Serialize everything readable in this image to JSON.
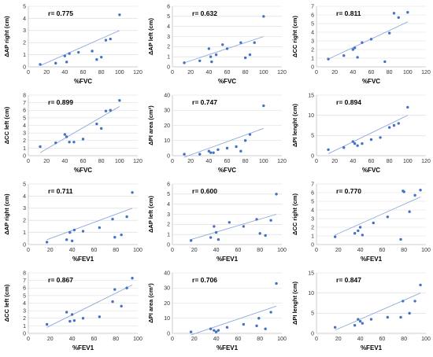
{
  "chart_data": [
    {
      "type": "scatter",
      "ylabel": "ΔAP right (cm)",
      "xlabel": "%FVC",
      "r_label": "r= 0.775",
      "xlim": [
        0,
        120
      ],
      "ylim": [
        0,
        5
      ],
      "xticks": [
        0,
        20,
        40,
        60,
        80,
        100,
        120
      ],
      "yticks": [
        0,
        1,
        2,
        3,
        4,
        5
      ],
      "x": [
        13,
        30,
        40,
        42,
        45,
        55,
        70,
        75,
        80,
        85,
        90,
        100
      ],
      "y": [
        0.2,
        0.3,
        0.9,
        0.4,
        1.1,
        1.2,
        1.3,
        0.6,
        0.8,
        2.2,
        2.3,
        4.3
      ],
      "trend": [
        [
          13,
          0.1
        ],
        [
          100,
          3.0
        ]
      ]
    },
    {
      "type": "scatter",
      "ylabel": "ΔAP left (cm)",
      "xlabel": "%FVC",
      "r_label": "r= 0.632",
      "xlim": [
        0,
        120
      ],
      "ylim": [
        0,
        6
      ],
      "xticks": [
        0,
        20,
        40,
        60,
        80,
        100,
        120
      ],
      "yticks": [
        0,
        1,
        2,
        3,
        4,
        5,
        6
      ],
      "x": [
        13,
        30,
        40,
        42,
        43,
        48,
        55,
        60,
        75,
        80,
        85,
        90,
        100
      ],
      "y": [
        0.4,
        0.6,
        1.8,
        1.0,
        0.5,
        1.2,
        2.2,
        1.8,
        2.4,
        0.9,
        1.2,
        2.4,
        5.0
      ],
      "trend": [
        [
          13,
          0.4
        ],
        [
          100,
          3.0
        ]
      ]
    },
    {
      "type": "scatter",
      "ylabel": "ΔCC right (cm)",
      "xlabel": "%FVC",
      "r_label": "r= 0.811",
      "xlim": [
        0,
        120
      ],
      "ylim": [
        0,
        7
      ],
      "xticks": [
        0,
        20,
        40,
        60,
        80,
        100,
        120
      ],
      "yticks": [
        0,
        1,
        2,
        3,
        4,
        5,
        6,
        7
      ],
      "x": [
        13,
        30,
        40,
        42,
        45,
        50,
        60,
        75,
        80,
        85,
        90,
        100
      ],
      "y": [
        0.9,
        1.3,
        2.0,
        2.2,
        1.1,
        2.8,
        3.2,
        0.6,
        3.9,
        6.2,
        5.7,
        6.3
      ],
      "trend": [
        [
          13,
          0.9
        ],
        [
          100,
          5.2
        ]
      ]
    },
    {
      "type": "scatter",
      "ylabel": "ΔCC left (cm)",
      "xlabel": "%FVC",
      "r_label": "r= 0.899",
      "xlim": [
        0,
        120
      ],
      "ylim": [
        0,
        8
      ],
      "xticks": [
        0,
        20,
        40,
        60,
        80,
        100,
        120
      ],
      "yticks": [
        0,
        1,
        2,
        3,
        4,
        5,
        6,
        7,
        8
      ],
      "x": [
        13,
        30,
        40,
        42,
        45,
        50,
        60,
        75,
        80,
        85,
        90,
        100
      ],
      "y": [
        1.2,
        1.7,
        2.8,
        2.5,
        1.8,
        1.8,
        2.2,
        4.2,
        3.6,
        5.9,
        6.0,
        7.3
      ],
      "trend": [
        [
          13,
          0.4
        ],
        [
          100,
          6.5
        ]
      ]
    },
    {
      "type": "scatter",
      "ylabel": "ΔPI area (cm²)",
      "xlabel": "%FVC",
      "r_label": "r= 0.747",
      "xlim": [
        0,
        120
      ],
      "ylim": [
        0,
        40
      ],
      "xticks": [
        0,
        20,
        40,
        60,
        80,
        100,
        120
      ],
      "yticks": [
        0,
        10,
        20,
        30,
        40
      ],
      "x": [
        13,
        30,
        40,
        42,
        45,
        50,
        60,
        70,
        75,
        80,
        85,
        100
      ],
      "y": [
        1,
        1,
        3,
        2,
        2,
        4,
        5,
        6,
        3,
        10,
        14,
        33
      ],
      "trend": [
        [
          13,
          -1
        ],
        [
          100,
          18
        ]
      ]
    },
    {
      "type": "scatter",
      "ylabel": "ΔPI lenght (cm)",
      "xlabel": "%FVC",
      "r_label": "r= 0.894",
      "xlim": [
        0,
        120
      ],
      "ylim": [
        0,
        15
      ],
      "xticks": [
        0,
        20,
        40,
        60,
        80,
        100,
        120
      ],
      "yticks": [
        0,
        5,
        10,
        15
      ],
      "x": [
        13,
        30,
        40,
        42,
        45,
        50,
        60,
        70,
        80,
        85,
        90,
        100
      ],
      "y": [
        1.5,
        2,
        3.5,
        3,
        2.5,
        3,
        4,
        4.5,
        7,
        7.5,
        8,
        12
      ],
      "trend": [
        [
          13,
          0.5
        ],
        [
          100,
          10
        ]
      ]
    },
    {
      "type": "scatter",
      "ylabel": "ΔAP right (cm)",
      "xlabel": "%FEV1",
      "r_label": "r= 0.711",
      "xlim": [
        0,
        100
      ],
      "ylim": [
        0,
        5
      ],
      "xticks": [
        0,
        20,
        40,
        60,
        80,
        100
      ],
      "yticks": [
        0,
        1,
        2,
        3,
        4,
        5
      ],
      "x": [
        17,
        35,
        38,
        40,
        42,
        50,
        65,
        77,
        79,
        85,
        90,
        95
      ],
      "y": [
        0.2,
        0.4,
        1.0,
        0.3,
        1.2,
        1.1,
        1.4,
        2.1,
        0.6,
        0.8,
        2.3,
        4.3
      ],
      "trend": [
        [
          17,
          0.4
        ],
        [
          95,
          3.0
        ]
      ]
    },
    {
      "type": "scatter",
      "ylabel": "ΔAP left (cm)",
      "xlabel": "%FEV1",
      "r_label": "r= 0.600",
      "xlim": [
        0,
        100
      ],
      "ylim": [
        0,
        6
      ],
      "xticks": [
        0,
        20,
        40,
        60,
        80,
        100
      ],
      "yticks": [
        0,
        1,
        2,
        3,
        4,
        5,
        6
      ],
      "x": [
        17,
        35,
        38,
        40,
        42,
        52,
        65,
        77,
        80,
        85,
        90,
        95
      ],
      "y": [
        0.4,
        0.7,
        1.8,
        1.2,
        0.5,
        2.2,
        1.8,
        2.5,
        1.1,
        0.9,
        2.4,
        5.0
      ],
      "trend": [
        [
          17,
          0.5
        ],
        [
          95,
          3.0
        ]
      ]
    },
    {
      "type": "scatter",
      "ylabel": "ΔCC right (cm)",
      "xlabel": "%FEV1",
      "r_label": "r= 0.770",
      "xlim": [
        0,
        100
      ],
      "ylim": [
        0,
        7
      ],
      "xticks": [
        0,
        20,
        40,
        60,
        80,
        100
      ],
      "yticks": [
        0,
        1,
        2,
        3,
        4,
        5,
        6,
        7
      ],
      "x": [
        17,
        35,
        38,
        40,
        42,
        52,
        65,
        77,
        79,
        80,
        85,
        90,
        95
      ],
      "y": [
        0.9,
        1.3,
        1.6,
        2.0,
        1.1,
        2.5,
        3.2,
        0.6,
        6.2,
        6.1,
        3.8,
        5.7,
        6.3
      ],
      "trend": [
        [
          17,
          1.1
        ],
        [
          95,
          5.5
        ]
      ]
    },
    {
      "type": "scatter",
      "ylabel": "ΔCC left (cm)",
      "xlabel": "%FEV1",
      "r_label": "r= 0.867",
      "xlim": [
        0,
        100
      ],
      "ylim": [
        0,
        8
      ],
      "xticks": [
        0,
        20,
        40,
        60,
        80,
        100
      ],
      "yticks": [
        0,
        1,
        2,
        3,
        4,
        5,
        6,
        7,
        8
      ],
      "x": [
        17,
        35,
        38,
        40,
        42,
        50,
        65,
        77,
        79,
        85,
        90,
        95
      ],
      "y": [
        1.2,
        2.8,
        1.6,
        2.5,
        1.7,
        2.0,
        2.2,
        4.2,
        5.8,
        3.6,
        6.0,
        7.3
      ],
      "trend": [
        [
          17,
          0.8
        ],
        [
          95,
          6.4
        ]
      ]
    },
    {
      "type": "scatter",
      "ylabel": "ΔPI area (cm²)",
      "xlabel": "%FEV1",
      "r_label": "r= 0.706",
      "xlim": [
        0,
        100
      ],
      "ylim": [
        0,
        40
      ],
      "xticks": [
        0,
        20,
        40,
        60,
        80,
        100
      ],
      "yticks": [
        0,
        10,
        20,
        30,
        40
      ],
      "x": [
        17,
        35,
        38,
        40,
        42,
        50,
        65,
        77,
        79,
        85,
        90,
        95
      ],
      "y": [
        1,
        3,
        2,
        1,
        2,
        4,
        6,
        5,
        10,
        3,
        14,
        33
      ],
      "trend": [
        [
          17,
          -1
        ],
        [
          95,
          18
        ]
      ]
    },
    {
      "type": "scatter",
      "ylabel": "ΔPI lenght (cm)",
      "xlabel": "%FEV1",
      "r_label": "r= 0.847",
      "xlim": [
        0,
        100
      ],
      "ylim": [
        0,
        15
      ],
      "xticks": [
        0,
        20,
        40,
        60,
        80,
        100
      ],
      "yticks": [
        0,
        5,
        10,
        15
      ],
      "x": [
        17,
        35,
        38,
        40,
        42,
        50,
        65,
        77,
        79,
        85,
        90,
        95
      ],
      "y": [
        1.5,
        2,
        3.5,
        3,
        2.5,
        3.5,
        4,
        4,
        8,
        5,
        8,
        12
      ],
      "trend": [
        [
          17,
          0.8
        ],
        [
          95,
          10
        ]
      ]
    }
  ]
}
